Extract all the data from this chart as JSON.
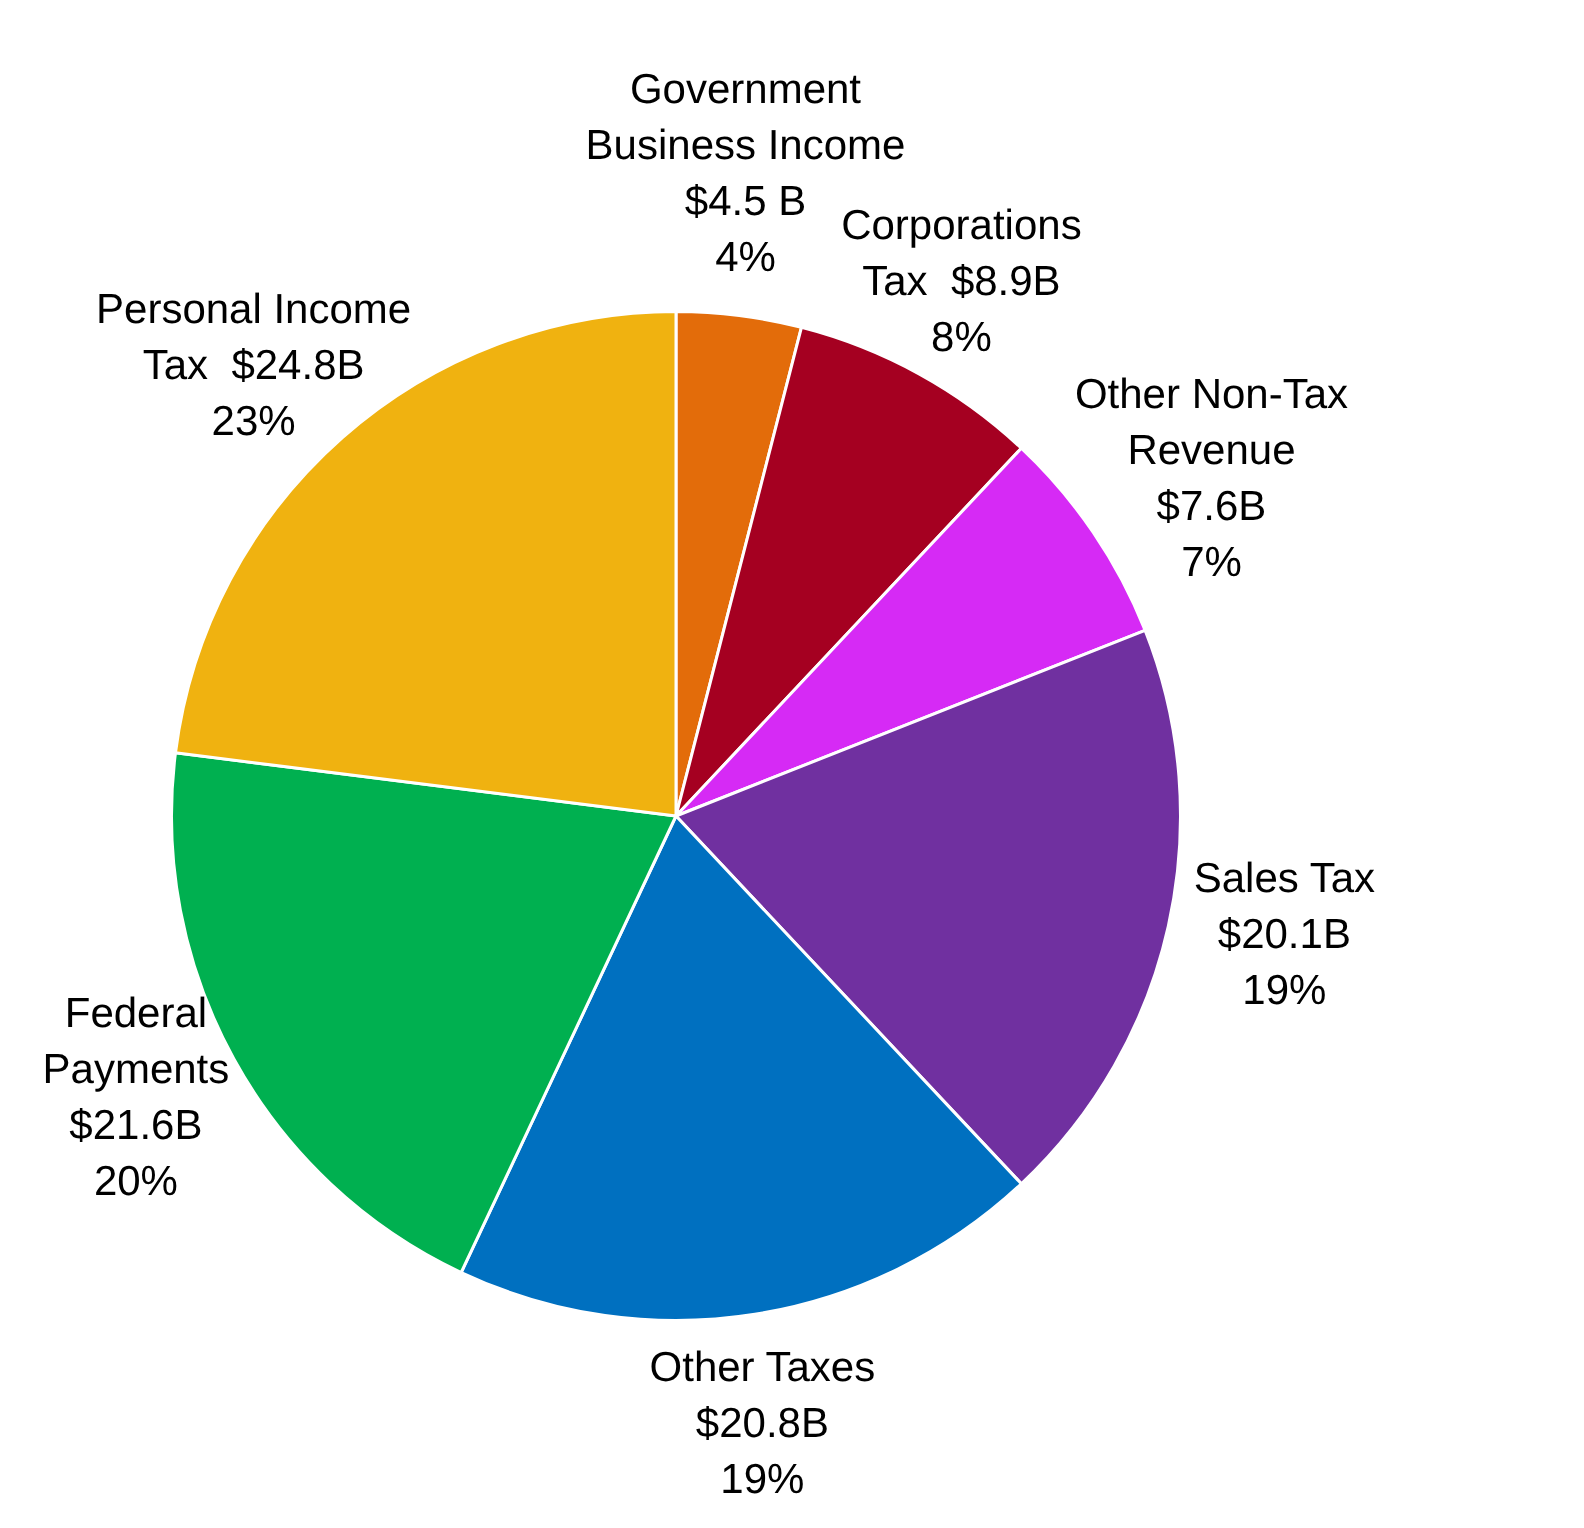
{
  "chart_data": {
    "type": "pie",
    "categories": [
      "Government\nBusiness Income\n$4.5 B",
      "Corporations\nTax  $8.9B",
      "Other Non-Tax\nRevenue\n$7.6B",
      "Sales Tax\n$20.1B",
      "Other Taxes\n$20.8B",
      "Federal\nPayments\n$21.6B",
      "Personal Income\nTax  $24.8B"
    ],
    "values": [
      4,
      8,
      7,
      19,
      19,
      20,
      23
    ],
    "value_labels": [
      "4%",
      "8%",
      "7%",
      "19%",
      "19%",
      "20%",
      "23%"
    ],
    "colors": [
      "#e36c0a",
      "#a50021",
      "#d62af5",
      "#7030a0",
      "#0070c0",
      "#00b050",
      "#f0b210"
    ]
  }
}
